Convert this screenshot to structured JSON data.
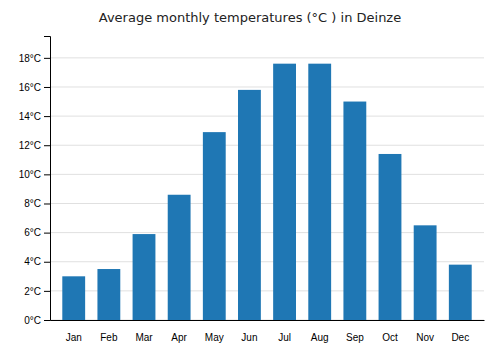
{
  "chart_data": {
    "type": "bar",
    "title": "Average monthly temperatures (°C ) in Deinze",
    "categories": [
      "Jan",
      "Feb",
      "Mar",
      "Apr",
      "May",
      "Jun",
      "Jul",
      "Aug",
      "Sep",
      "Oct",
      "Nov",
      "Dec"
    ],
    "values": [
      3.0,
      3.5,
      5.9,
      8.6,
      12.9,
      15.8,
      17.6,
      17.6,
      15.0,
      11.4,
      6.5,
      3.8
    ],
    "ylim": [
      0,
      19.5
    ],
    "yticks": [
      {
        "value": 0,
        "label": "0°C"
      },
      {
        "value": 2,
        "label": "2°C"
      },
      {
        "value": 4,
        "label": "4°C"
      },
      {
        "value": 6,
        "label": "6°C"
      },
      {
        "value": 8,
        "label": "8°C"
      },
      {
        "value": 10,
        "label": "10°C"
      },
      {
        "value": 12,
        "label": "12°C"
      },
      {
        "value": 14,
        "label": "14°C"
      },
      {
        "value": 16,
        "label": "16°C"
      },
      {
        "value": 18,
        "label": "18°C"
      }
    ],
    "grid": true
  }
}
